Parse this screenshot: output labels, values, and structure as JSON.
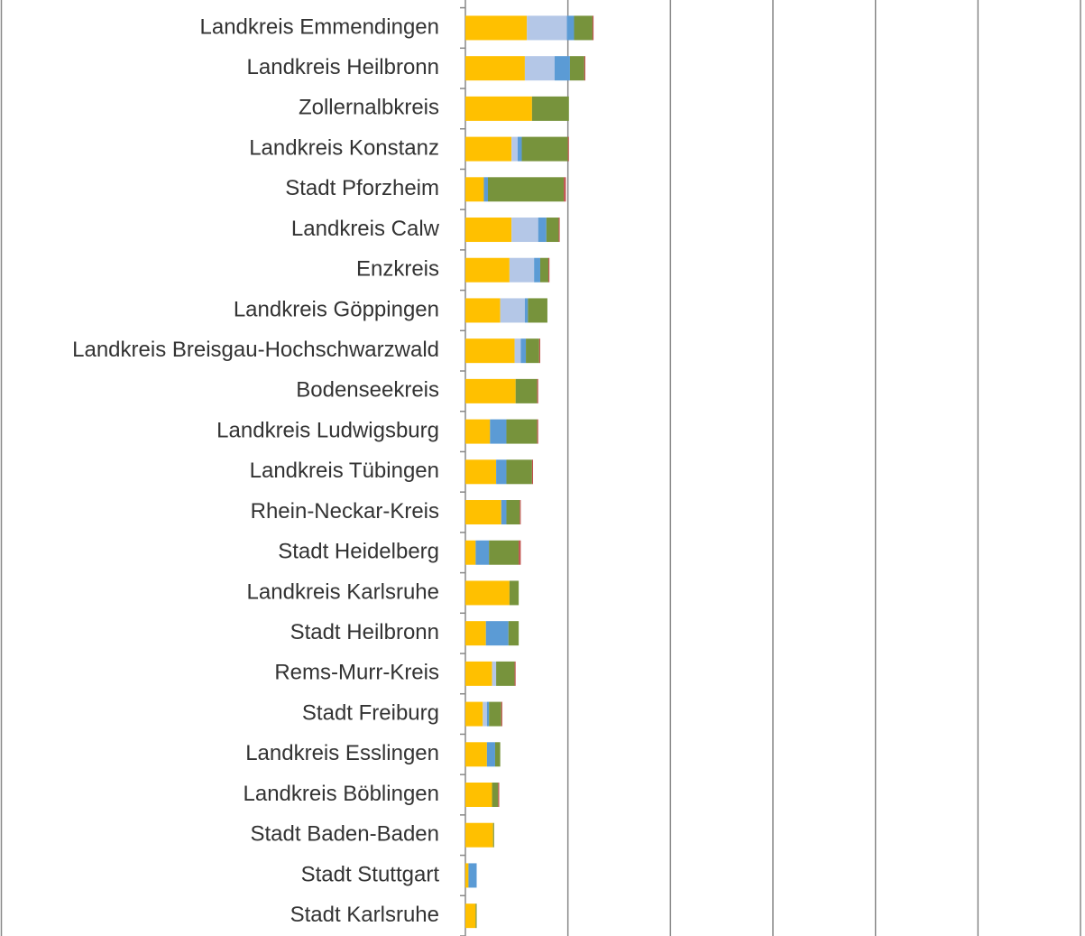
{
  "chart_data": {
    "type": "bar",
    "orientation": "horizontal",
    "stacked": true,
    "grid": true,
    "categories": [
      "Landkreis Emmendingen",
      "Landkreis Heilbronn",
      "Zollernalbkreis",
      "Landkreis Konstanz",
      "Stadt Pforzheim",
      "Landkreis Calw",
      "Enzkreis",
      "Landkreis Göppingen",
      "Landkreis Breisgau-Hochschwarzwald",
      "Bodenseekreis",
      "Landkreis Ludwigsburg",
      "Landkreis Tübingen",
      "Rhein-Neckar-Kreis",
      "Stadt Heidelberg",
      "Landkreis Karlsruhe",
      "Stadt Heilbronn",
      "Rems-Murr-Kreis",
      "Stadt Freiburg",
      "Landkreis Esslingen",
      "Landkreis Böblingen",
      "Stadt Baden-Baden",
      "Stadt Stuttgart",
      "Stadt Karlsruhe"
    ],
    "series": [
      {
        "color": "#ffc000",
        "values": [
          60,
          58,
          65,
          45,
          18,
          45,
          43,
          34,
          48,
          49,
          24,
          30,
          35,
          10,
          43,
          20,
          26,
          17,
          21,
          26,
          27,
          3,
          10
        ]
      },
      {
        "color": "#b4c7e7",
        "values": [
          39,
          29,
          0,
          6,
          0,
          26,
          24,
          24,
          6,
          0,
          0,
          0,
          0,
          0,
          0,
          0,
          4,
          4,
          0,
          0,
          0,
          0,
          0
        ]
      },
      {
        "color": "#5b9bd5",
        "values": [
          7,
          15,
          0,
          4,
          4,
          8,
          6,
          3,
          5,
          0,
          16,
          10,
          5,
          13,
          0,
          22,
          0,
          2,
          8,
          0,
          0,
          8,
          0
        ]
      },
      {
        "color": "#77933c",
        "values": [
          18,
          14,
          36,
          45,
          74,
          12,
          8,
          19,
          13,
          21,
          30,
          25,
          13,
          29,
          9,
          10,
          18,
          12,
          5,
          6,
          1,
          0,
          1
        ]
      },
      {
        "color": "#c0504d",
        "values": [
          1,
          1,
          0,
          1,
          2,
          1,
          1,
          0,
          1,
          1,
          1,
          1,
          1,
          2,
          0,
          0,
          1,
          1,
          0,
          1,
          0,
          0,
          0
        ]
      }
    ],
    "xlim": [
      0,
      600
    ],
    "xticks": [
      0,
      100,
      200,
      300,
      400,
      500,
      600
    ]
  }
}
